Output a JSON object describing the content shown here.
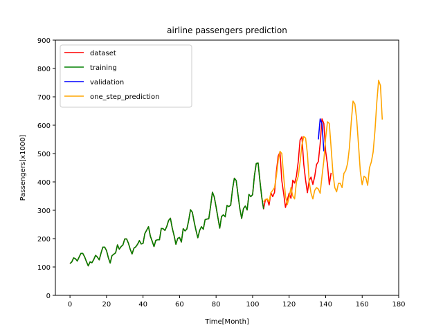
{
  "chart_data": {
    "type": "line",
    "title": "airline passengers prediction",
    "xlabel": "Time[Month]",
    "ylabel": "Passengers[x1000]",
    "xlim": [
      -8,
      180
    ],
    "ylim": [
      0,
      900
    ],
    "xticks": [
      0,
      20,
      40,
      60,
      80,
      100,
      120,
      140,
      160,
      180
    ],
    "yticks": [
      0,
      100,
      200,
      300,
      400,
      500,
      600,
      700,
      800,
      900
    ],
    "grid": false,
    "legend_position": "top-left",
    "series": [
      {
        "name": "dataset",
        "color": "#ff0000",
        "x_start": 0,
        "values": [
          112,
          118,
          132,
          129,
          121,
          135,
          148,
          148,
          136,
          119,
          104,
          118,
          115,
          126,
          141,
          135,
          125,
          149,
          170,
          170,
          158,
          133,
          114,
          140,
          145,
          150,
          178,
          163,
          172,
          178,
          199,
          199,
          184,
          162,
          146,
          166,
          171,
          180,
          193,
          181,
          183,
          218,
          230,
          242,
          209,
          191,
          172,
          194,
          196,
          196,
          236,
          235,
          229,
          243,
          264,
          272,
          237,
          211,
          180,
          201,
          204,
          188,
          235,
          227,
          234,
          264,
          302,
          293,
          259,
          229,
          203,
          229,
          242,
          233,
          267,
          269,
          270,
          315,
          364,
          347,
          312,
          274,
          237,
          278,
          284,
          277,
          317,
          313,
          318,
          374,
          413,
          405,
          355,
          306,
          271,
          306,
          315,
          301,
          356,
          348,
          355,
          422,
          465,
          467,
          404,
          347,
          305,
          336,
          340,
          318,
          362,
          348,
          363,
          435,
          491,
          505,
          404,
          359,
          310,
          337,
          360,
          342,
          406,
          396,
          420,
          472,
          548,
          559,
          463,
          407,
          362,
          405,
          417,
          391,
          419,
          461,
          472,
          535,
          622,
          606,
          508,
          461,
          390,
          432
        ]
      },
      {
        "name": "training",
        "color": "#008000",
        "x_start": 0,
        "values": [
          112,
          118,
          132,
          129,
          121,
          135,
          148,
          148,
          136,
          119,
          104,
          118,
          115,
          126,
          141,
          135,
          125,
          149,
          170,
          170,
          158,
          133,
          114,
          140,
          145,
          150,
          178,
          163,
          172,
          178,
          199,
          199,
          184,
          162,
          146,
          166,
          171,
          180,
          193,
          181,
          183,
          218,
          230,
          242,
          209,
          191,
          172,
          194,
          196,
          196,
          236,
          235,
          229,
          243,
          264,
          272,
          237,
          211,
          180,
          201,
          204,
          188,
          235,
          227,
          234,
          264,
          302,
          293,
          259,
          229,
          203,
          229,
          242,
          233,
          267,
          269,
          270,
          315,
          364,
          347,
          312,
          274,
          237,
          278,
          284,
          277,
          317,
          313,
          318,
          374,
          413,
          405,
          355,
          306,
          271,
          306,
          315,
          301,
          356,
          348,
          355,
          422,
          465,
          467,
          404,
          347,
          305
        ]
      },
      {
        "name": "validation",
        "color": "#0000ff",
        "x_start": 136,
        "values": [
          550,
          622,
          606,
          508
        ]
      },
      {
        "name": "one_step_prediction",
        "color": "#ffa500",
        "x_start": 106,
        "values": [
          330,
          338,
          340,
          330,
          362,
          370,
          380,
          420,
          475,
          508,
          500,
          420,
          350,
          320,
          345,
          380,
          350,
          340,
          400,
          420,
          470,
          530,
          560,
          555,
          500,
          400,
          360,
          340,
          370,
          380,
          375,
          360,
          420,
          475,
          555,
          612,
          606,
          520,
          430,
          380,
          365,
          395,
          395,
          380,
          430,
          440,
          465,
          520,
          610,
          685,
          675,
          620,
          530,
          435,
          390,
          420,
          415,
          388,
          450,
          470,
          505,
          580,
          680,
          758,
          740,
          620
        ]
      }
    ]
  }
}
